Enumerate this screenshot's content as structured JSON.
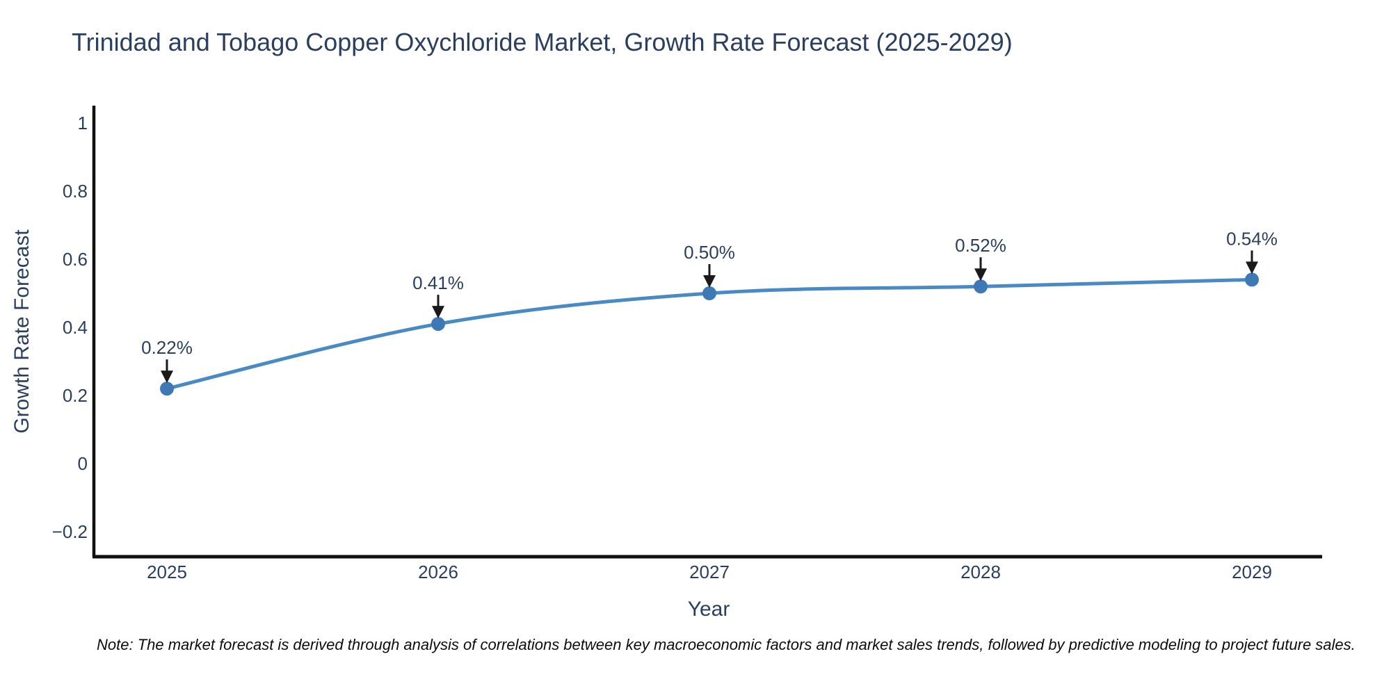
{
  "page": {
    "title": "Trinidad and Tobago Copper Oxychloride Market, Growth Rate Forecast (2025-2029)",
    "note": "Note: The market forecast is derived through analysis of correlations between key macroeconomic factors and market sales trends, followed by predictive modeling to project future sales."
  },
  "chart_data": {
    "type": "line",
    "title": "Trinidad and Tobago Copper Oxychloride Market, Growth Rate Forecast (2025-2029)",
    "categories": [
      "2025",
      "2026",
      "2027",
      "2028",
      "2029"
    ],
    "x": [
      2025,
      2026,
      2027,
      2028,
      2029
    ],
    "series": [
      {
        "name": "Growth Rate Forecast",
        "values": [
          0.22,
          0.41,
          0.5,
          0.52,
          0.54
        ]
      }
    ],
    "point_labels": [
      "0.22%",
      "0.41%",
      "0.50%",
      "0.52%",
      "0.54%"
    ],
    "xlabel": "Year",
    "ylabel": "Growth Rate Forecast",
    "ylim": [
      -0.2,
      1
    ],
    "yticks": [
      1,
      0.8,
      0.6,
      0.4,
      0.2,
      0,
      -0.2
    ],
    "ytick_labels": [
      "1",
      "0.8",
      "0.6",
      "0.4",
      "0.2",
      "0",
      "−0.2"
    ],
    "grid": false,
    "legend": "none",
    "annotation_style": "value labels above points with downward black arrows",
    "colors": {
      "line": "#4a8ac4",
      "marker": "#3e79b6",
      "axis": "#101010",
      "tick_text": "#2a3f5f",
      "title_text": "#2a3f5f",
      "annotation_text": "#2a3f5f",
      "arrow": "#1a1a1a",
      "note_text": "#0d0d0d",
      "background": "#ffffff"
    }
  }
}
